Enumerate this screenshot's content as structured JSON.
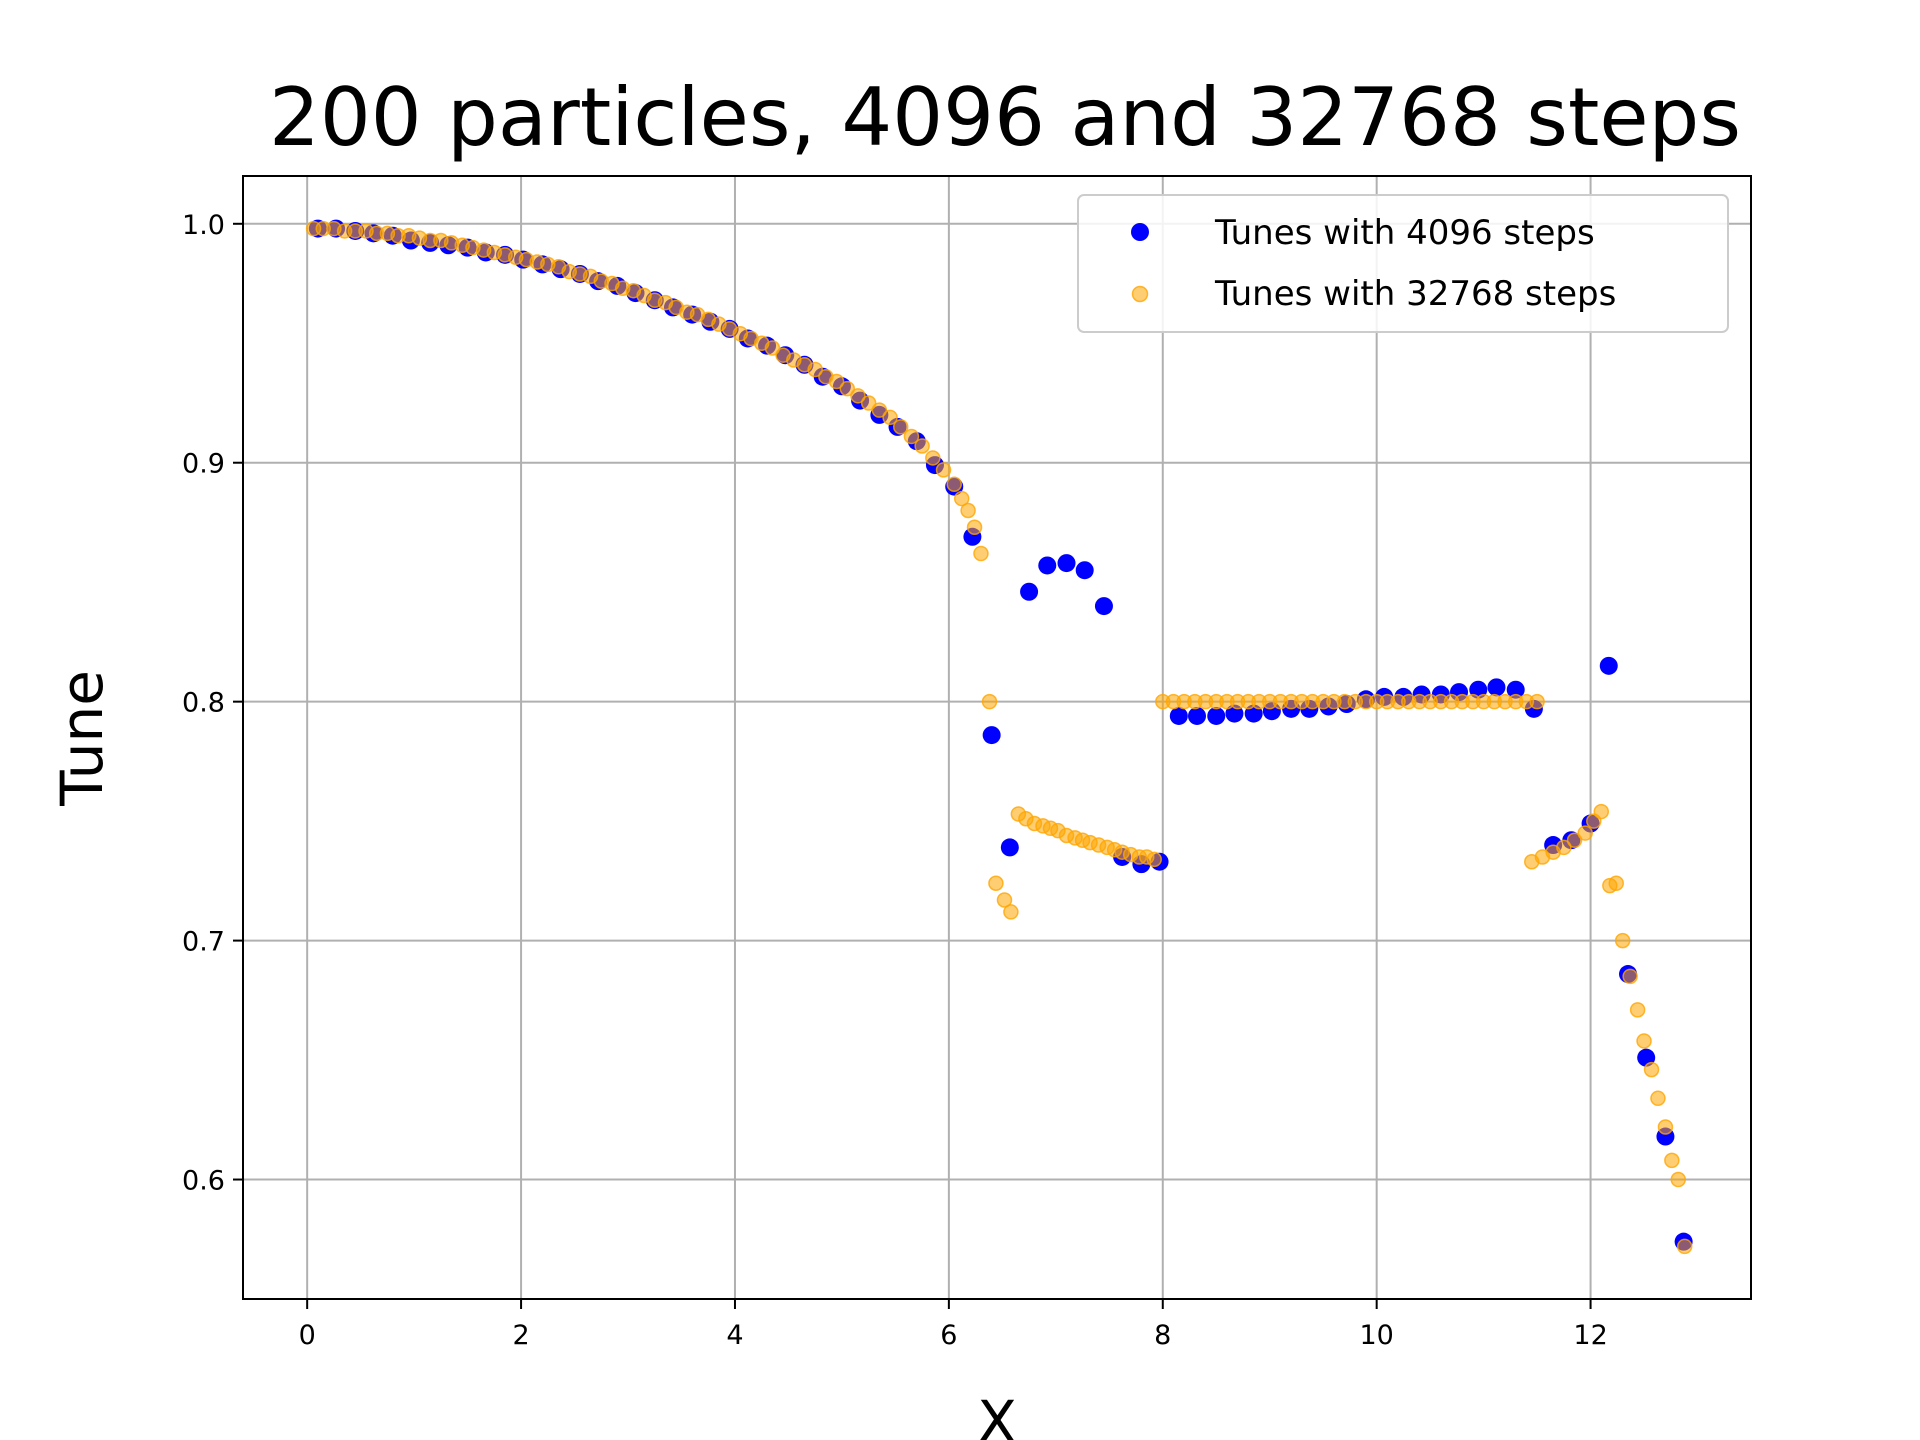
{
  "chart_data": {
    "type": "scatter",
    "title": "200 particles, 4096 and 32768 steps",
    "xlabel": "X",
    "ylabel": "Tune",
    "xlim": [
      -0.6,
      13.5
    ],
    "ylim": [
      0.55,
      1.02
    ],
    "xticks": [
      0,
      2,
      4,
      6,
      8,
      10,
      12
    ],
    "xtick_labels": [
      "0",
      "2",
      "4",
      "6",
      "8",
      "10",
      "12"
    ],
    "yticks": [
      0.6,
      0.7,
      0.8,
      0.9,
      1.0
    ],
    "ytick_labels": [
      "0.6",
      "0.7",
      "0.8",
      "0.9",
      "1.0"
    ],
    "grid": true,
    "legend_position": "top-right",
    "series": [
      {
        "name": "Tunes with 4096 steps",
        "color": "#0000ff",
        "opacity": 1.0,
        "marker_size": 7,
        "points": [
          [
            0.1,
            0.998
          ],
          [
            0.27,
            0.998
          ],
          [
            0.45,
            0.997
          ],
          [
            0.62,
            0.996
          ],
          [
            0.8,
            0.995
          ],
          [
            0.97,
            0.993
          ],
          [
            1.15,
            0.992
          ],
          [
            1.32,
            0.991
          ],
          [
            1.5,
            0.99
          ],
          [
            1.67,
            0.988
          ],
          [
            1.85,
            0.987
          ],
          [
            2.02,
            0.985
          ],
          [
            2.2,
            0.983
          ],
          [
            2.37,
            0.981
          ],
          [
            2.55,
            0.979
          ],
          [
            2.72,
            0.976
          ],
          [
            2.9,
            0.974
          ],
          [
            3.07,
            0.971
          ],
          [
            3.25,
            0.968
          ],
          [
            3.42,
            0.965
          ],
          [
            3.6,
            0.962
          ],
          [
            3.77,
            0.959
          ],
          [
            3.95,
            0.956
          ],
          [
            4.12,
            0.952
          ],
          [
            4.3,
            0.949
          ],
          [
            4.47,
            0.945
          ],
          [
            4.65,
            0.941
          ],
          [
            4.82,
            0.936
          ],
          [
            5.0,
            0.932
          ],
          [
            5.17,
            0.926
          ],
          [
            5.35,
            0.92
          ],
          [
            5.52,
            0.915
          ],
          [
            5.7,
            0.909
          ],
          [
            5.87,
            0.899
          ],
          [
            6.05,
            0.89
          ],
          [
            6.22,
            0.869
          ],
          [
            6.4,
            0.786
          ],
          [
            6.57,
            0.739
          ],
          [
            6.75,
            0.846
          ],
          [
            6.92,
            0.857
          ],
          [
            7.1,
            0.858
          ],
          [
            7.27,
            0.855
          ],
          [
            7.45,
            0.84
          ],
          [
            7.62,
            0.735
          ],
          [
            7.8,
            0.732
          ],
          [
            7.97,
            0.733
          ],
          [
            8.15,
            0.794
          ],
          [
            8.32,
            0.794
          ],
          [
            8.5,
            0.794
          ],
          [
            8.67,
            0.795
          ],
          [
            8.85,
            0.795
          ],
          [
            9.02,
            0.796
          ],
          [
            9.2,
            0.797
          ],
          [
            9.37,
            0.797
          ],
          [
            9.55,
            0.798
          ],
          [
            9.72,
            0.799
          ],
          [
            9.9,
            0.801
          ],
          [
            10.07,
            0.802
          ],
          [
            10.25,
            0.802
          ],
          [
            10.42,
            0.803
          ],
          [
            10.6,
            0.803
          ],
          [
            10.77,
            0.804
          ],
          [
            10.95,
            0.805
          ],
          [
            11.12,
            0.806
          ],
          [
            11.3,
            0.805
          ],
          [
            11.47,
            0.797
          ],
          [
            11.65,
            0.74
          ],
          [
            11.82,
            0.742
          ],
          [
            12.0,
            0.749
          ],
          [
            12.17,
            0.815
          ],
          [
            12.35,
            0.686
          ],
          [
            12.52,
            0.651
          ],
          [
            12.7,
            0.618
          ],
          [
            12.87,
            0.574
          ]
        ]
      },
      {
        "name": "Tunes with 32768 steps",
        "color": "#ffa500",
        "opacity": 0.55,
        "marker_size": 6,
        "points": [
          [
            0.06,
            0.998
          ],
          [
            0.15,
            0.998
          ],
          [
            0.25,
            0.998
          ],
          [
            0.35,
            0.997
          ],
          [
            0.45,
            0.997
          ],
          [
            0.55,
            0.997
          ],
          [
            0.65,
            0.996
          ],
          [
            0.75,
            0.996
          ],
          [
            0.85,
            0.995
          ],
          [
            0.95,
            0.995
          ],
          [
            1.05,
            0.994
          ],
          [
            1.15,
            0.993
          ],
          [
            1.25,
            0.993
          ],
          [
            1.35,
            0.992
          ],
          [
            1.45,
            0.991
          ],
          [
            1.55,
            0.99
          ],
          [
            1.65,
            0.989
          ],
          [
            1.75,
            0.988
          ],
          [
            1.85,
            0.987
          ],
          [
            1.95,
            0.986
          ],
          [
            2.05,
            0.985
          ],
          [
            2.15,
            0.984
          ],
          [
            2.25,
            0.983
          ],
          [
            2.35,
            0.982
          ],
          [
            2.45,
            0.98
          ],
          [
            2.55,
            0.979
          ],
          [
            2.65,
            0.978
          ],
          [
            2.75,
            0.976
          ],
          [
            2.85,
            0.975
          ],
          [
            2.95,
            0.973
          ],
          [
            3.05,
            0.972
          ],
          [
            3.15,
            0.97
          ],
          [
            3.25,
            0.968
          ],
          [
            3.35,
            0.967
          ],
          [
            3.45,
            0.965
          ],
          [
            3.55,
            0.963
          ],
          [
            3.65,
            0.962
          ],
          [
            3.75,
            0.96
          ],
          [
            3.85,
            0.958
          ],
          [
            3.95,
            0.956
          ],
          [
            4.05,
            0.954
          ],
          [
            4.15,
            0.952
          ],
          [
            4.25,
            0.95
          ],
          [
            4.35,
            0.948
          ],
          [
            4.45,
            0.945
          ],
          [
            4.55,
            0.943
          ],
          [
            4.65,
            0.941
          ],
          [
            4.75,
            0.939
          ],
          [
            4.85,
            0.936
          ],
          [
            4.95,
            0.934
          ],
          [
            5.05,
            0.931
          ],
          [
            5.15,
            0.928
          ],
          [
            5.25,
            0.925
          ],
          [
            5.35,
            0.922
          ],
          [
            5.45,
            0.919
          ],
          [
            5.55,
            0.915
          ],
          [
            5.65,
            0.911
          ],
          [
            5.75,
            0.907
          ],
          [
            5.85,
            0.902
          ],
          [
            5.95,
            0.897
          ],
          [
            6.05,
            0.891
          ],
          [
            6.12,
            0.885
          ],
          [
            6.18,
            0.88
          ],
          [
            6.24,
            0.873
          ],
          [
            6.3,
            0.862
          ],
          [
            6.38,
            0.8
          ],
          [
            6.44,
            0.724
          ],
          [
            6.52,
            0.717
          ],
          [
            6.58,
            0.712
          ],
          [
            6.65,
            0.753
          ],
          [
            6.72,
            0.751
          ],
          [
            6.8,
            0.749
          ],
          [
            6.88,
            0.748
          ],
          [
            6.95,
            0.747
          ],
          [
            7.02,
            0.746
          ],
          [
            7.1,
            0.744
          ],
          [
            7.18,
            0.743
          ],
          [
            7.25,
            0.742
          ],
          [
            7.32,
            0.741
          ],
          [
            7.4,
            0.74
          ],
          [
            7.48,
            0.739
          ],
          [
            7.55,
            0.738
          ],
          [
            7.62,
            0.737
          ],
          [
            7.7,
            0.736
          ],
          [
            7.78,
            0.735
          ],
          [
            7.85,
            0.735
          ],
          [
            7.92,
            0.734
          ],
          [
            8.0,
            0.8
          ],
          [
            8.1,
            0.8
          ],
          [
            8.2,
            0.8
          ],
          [
            8.3,
            0.8
          ],
          [
            8.4,
            0.8
          ],
          [
            8.5,
            0.8
          ],
          [
            8.6,
            0.8
          ],
          [
            8.7,
            0.8
          ],
          [
            8.8,
            0.8
          ],
          [
            8.9,
            0.8
          ],
          [
            9.0,
            0.8
          ],
          [
            9.1,
            0.8
          ],
          [
            9.2,
            0.8
          ],
          [
            9.3,
            0.8
          ],
          [
            9.4,
            0.8
          ],
          [
            9.5,
            0.8
          ],
          [
            9.6,
            0.8
          ],
          [
            9.7,
            0.8
          ],
          [
            9.8,
            0.8
          ],
          [
            9.9,
            0.8
          ],
          [
            10.0,
            0.8
          ],
          [
            10.1,
            0.8
          ],
          [
            10.2,
            0.8
          ],
          [
            10.3,
            0.8
          ],
          [
            10.4,
            0.8
          ],
          [
            10.5,
            0.8
          ],
          [
            10.6,
            0.8
          ],
          [
            10.7,
            0.8
          ],
          [
            10.8,
            0.8
          ],
          [
            10.9,
            0.8
          ],
          [
            11.0,
            0.8
          ],
          [
            11.1,
            0.8
          ],
          [
            11.2,
            0.8
          ],
          [
            11.3,
            0.8
          ],
          [
            11.4,
            0.8
          ],
          [
            11.5,
            0.8
          ],
          [
            11.45,
            0.733
          ],
          [
            11.55,
            0.735
          ],
          [
            11.65,
            0.737
          ],
          [
            11.75,
            0.739
          ],
          [
            11.85,
            0.742
          ],
          [
            11.95,
            0.745
          ],
          [
            12.03,
            0.75
          ],
          [
            12.1,
            0.754
          ],
          [
            12.18,
            0.723
          ],
          [
            12.24,
            0.724
          ],
          [
            12.3,
            0.7
          ],
          [
            12.37,
            0.685
          ],
          [
            12.44,
            0.671
          ],
          [
            12.5,
            0.658
          ],
          [
            12.57,
            0.646
          ],
          [
            12.63,
            0.634
          ],
          [
            12.7,
            0.622
          ],
          [
            12.76,
            0.608
          ],
          [
            12.82,
            0.6
          ],
          [
            12.88,
            0.572
          ]
        ]
      }
    ]
  }
}
